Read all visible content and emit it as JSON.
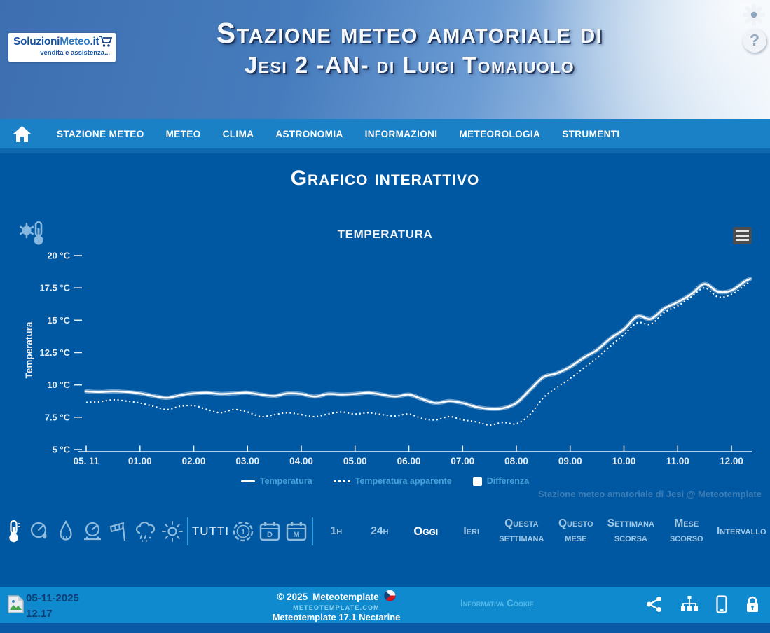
{
  "header": {
    "logo": {
      "title": "SoluzioniMeteo.it",
      "title_part1": "Soluzioni",
      "title_part2": "Meteo",
      "title_part3": ".it",
      "subtitle": "vendita e assistenza...",
      "cart_icon": "shopping-cart-icon"
    },
    "title_line1": "Stazione meteo amatoriale di",
    "title_line2": "Jesi 2 -AN- di Luigi Tomaiuolo",
    "icons": [
      "settings-gear",
      "help-question"
    ],
    "help_glyph": "?"
  },
  "nav": {
    "home_icon": "home-icon",
    "items": [
      "STAZIONE METEO",
      "METEO",
      "CLIMA",
      "ASTRONOMIA",
      "INFORMAZIONI",
      "METEOROLOGIA",
      "STRUMENTI"
    ]
  },
  "page": {
    "title": "Grafico interattivo"
  },
  "chart_data": {
    "type": "line",
    "title": "Temperatura",
    "ylabel": "Temperatura",
    "ylim": [
      5,
      20
    ],
    "grid": false,
    "legend_position": "bottom",
    "corner_icon": "thermometer-snowflake-icon",
    "menu_icon": "hamburger-menu-icon",
    "y_ticks": [
      {
        "value": 20,
        "label": "20 °C"
      },
      {
        "value": 17.5,
        "label": "17.5 °C"
      },
      {
        "value": 15,
        "label": "15 °C"
      },
      {
        "value": 12.5,
        "label": "12.5 °C"
      },
      {
        "value": 10,
        "label": "10 °C"
      },
      {
        "value": 7.5,
        "label": "7.5 °C"
      },
      {
        "value": 5,
        "label": "5 °C"
      }
    ],
    "x_ticks": [
      {
        "hour": 0,
        "label": "05. 11"
      },
      {
        "hour": 1,
        "label": "01.00"
      },
      {
        "hour": 2,
        "label": "02.00"
      },
      {
        "hour": 3,
        "label": "03.00"
      },
      {
        "hour": 4,
        "label": "04.00"
      },
      {
        "hour": 5,
        "label": "05.00"
      },
      {
        "hour": 6,
        "label": "06.00"
      },
      {
        "hour": 7,
        "label": "07.00"
      },
      {
        "hour": 8,
        "label": "08.00"
      },
      {
        "hour": 9,
        "label": "09.00"
      },
      {
        "hour": 10,
        "label": "10.00"
      },
      {
        "hour": 11,
        "label": "11.00"
      },
      {
        "hour": 12,
        "label": "12.00"
      }
    ],
    "x": [
      0,
      0.25,
      0.5,
      0.75,
      1,
      1.25,
      1.5,
      1.75,
      2,
      2.25,
      2.5,
      2.75,
      3,
      3.25,
      3.5,
      3.75,
      4,
      4.25,
      4.5,
      4.75,
      5,
      5.25,
      5.5,
      5.75,
      6,
      6.25,
      6.5,
      6.75,
      7,
      7.25,
      7.5,
      7.75,
      8,
      8.25,
      8.5,
      8.75,
      9,
      9.25,
      9.5,
      9.75,
      10,
      10.25,
      10.5,
      10.75,
      11,
      11.25,
      11.5,
      11.75,
      12,
      12.25,
      12.35
    ],
    "series": [
      {
        "name": "Temperatura",
        "style": "solid",
        "values": [
          9.5,
          9.45,
          9.5,
          9.45,
          9.35,
          9.15,
          9.0,
          9.2,
          9.35,
          9.4,
          9.3,
          9.35,
          9.4,
          9.25,
          9.15,
          9.35,
          9.3,
          9.1,
          9.3,
          9.25,
          9.3,
          9.4,
          9.25,
          9.1,
          9.25,
          8.9,
          8.6,
          8.75,
          8.6,
          8.3,
          8.15,
          8.2,
          8.6,
          9.6,
          10.6,
          10.9,
          11.4,
          12.1,
          12.7,
          13.6,
          14.3,
          15.3,
          15.1,
          15.9,
          16.4,
          17.0,
          17.8,
          17.2,
          17.3,
          18.0,
          18.2
        ]
      },
      {
        "name": "Temperatura apparente",
        "style": "dotted",
        "values": [
          8.65,
          8.7,
          8.85,
          8.75,
          8.6,
          8.35,
          8.1,
          8.35,
          8.4,
          8.1,
          7.85,
          8.1,
          7.9,
          7.55,
          7.7,
          7.85,
          7.7,
          7.55,
          7.75,
          7.9,
          7.75,
          7.85,
          7.7,
          7.6,
          7.75,
          7.4,
          7.3,
          7.55,
          7.3,
          7.15,
          6.9,
          7.1,
          7.0,
          7.7,
          9.0,
          9.8,
          10.5,
          11.3,
          12.1,
          13.0,
          13.9,
          14.8,
          14.7,
          15.6,
          16.1,
          16.8,
          17.5,
          16.8,
          17.0,
          17.7,
          18.0
        ]
      },
      {
        "name": "Differenza",
        "style": "area",
        "values": []
      }
    ],
    "legend": [
      "Temperatura",
      "Temperatura apparente",
      "Differenza"
    ],
    "watermark": "Stazione meteo amatoriale di Jesi @ Meteotemplate"
  },
  "toolbar": {
    "variables": [
      {
        "icon": "thermometer-icon",
        "active": true
      },
      {
        "icon": "humidity-gauge-icon",
        "active": false
      },
      {
        "icon": "raindrop-icon",
        "active": false
      },
      {
        "icon": "pressure-gauge-icon",
        "active": false
      },
      {
        "icon": "windsock-icon",
        "active": false
      },
      {
        "icon": "rain-cloud-icon",
        "active": false
      },
      {
        "icon": "sun-icon",
        "active": false
      }
    ],
    "all_label": "TUTTI",
    "grouping_icons": [
      "clock-hour-icon",
      "calendar-day-icon",
      "calendar-month-icon"
    ],
    "grouping_glyphs": {
      "hour": "1",
      "day": "D",
      "month": "M"
    },
    "periods": [
      {
        "label": "1h",
        "active": false
      },
      {
        "label": "24h",
        "active": false
      },
      {
        "label": "Oggi",
        "active": true
      },
      {
        "label": "Ieri",
        "active": false
      },
      {
        "label": "Questa settimana",
        "active": false
      },
      {
        "label": "Questo mese",
        "active": false
      },
      {
        "label": "Settimana scorsa",
        "active": false
      },
      {
        "label": "Mese scorso",
        "active": false
      },
      {
        "label": "Intervallo",
        "active": false
      }
    ]
  },
  "footer": {
    "doc_icon": "image-file-icon",
    "date": "05-11-2025",
    "time": "12.17",
    "copyright": "© 2025",
    "brand": "Meteotemplate",
    "flag_icon": "czech-flag-icon",
    "site": "METEOTEMPLATE.COM",
    "version": "Meteotemplate 17.1 Nectarine",
    "cookie_link": "Informativa Cookie",
    "icons": [
      "share-icon",
      "sitemap-icon",
      "mobile-icon",
      "lock-icon"
    ]
  }
}
